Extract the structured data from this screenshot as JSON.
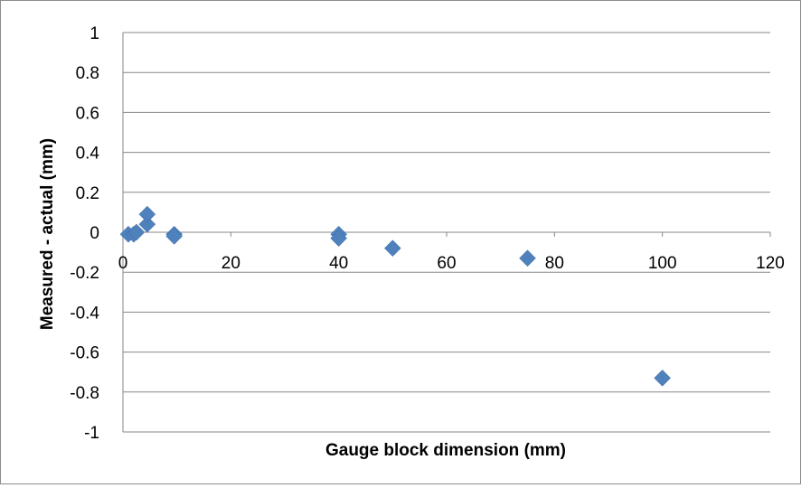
{
  "chart_data": {
    "type": "scatter",
    "title": "",
    "xlabel": "Gauge block dimension (mm)",
    "ylabel": "Measured - actual (mm)",
    "xlim": [
      0,
      120
    ],
    "ylim": [
      -1,
      1
    ],
    "x_ticks": [
      "0",
      "20",
      "40",
      "60",
      "80",
      "100",
      "120"
    ],
    "y_ticks": [
      "1",
      "0.8",
      "0.6",
      "0.4",
      "0.2",
      "0",
      "-0.2",
      "-0.4",
      "-0.6",
      "-0.8",
      "-1"
    ],
    "x_tick_values": [
      0,
      20,
      40,
      60,
      80,
      100,
      120
    ],
    "y_tick_values": [
      1,
      0.8,
      0.6,
      0.4,
      0.2,
      0,
      -0.2,
      -0.4,
      -0.6,
      -0.8,
      -1
    ],
    "grid": "horizontal",
    "legend": "none",
    "marker": "diamond",
    "color": "#4f81bd",
    "series": [
      {
        "points": [
          {
            "x": 1,
            "y": -0.01
          },
          {
            "x": 2,
            "y": -0.01
          },
          {
            "x": 2.5,
            "y": 0.0
          },
          {
            "x": 4.5,
            "y": 0.04
          },
          {
            "x": 4.5,
            "y": 0.09
          },
          {
            "x": 9.5,
            "y": -0.01
          },
          {
            "x": 9.5,
            "y": -0.02
          },
          {
            "x": 40,
            "y": -0.01
          },
          {
            "x": 40,
            "y": -0.03
          },
          {
            "x": 50,
            "y": -0.08
          },
          {
            "x": 75,
            "y": -0.13
          },
          {
            "x": 100,
            "y": -0.73
          }
        ]
      }
    ]
  }
}
